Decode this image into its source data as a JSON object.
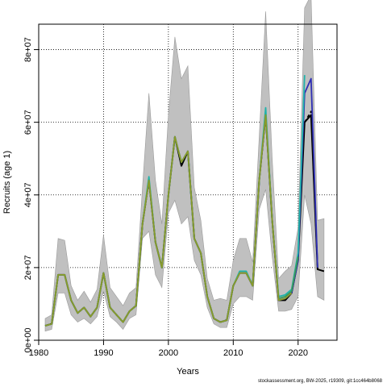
{
  "chart_data": {
    "type": "line",
    "xlabel": "Years",
    "ylabel": "Recruits (age 1)",
    "xlim": [
      1980,
      2026
    ],
    "ylim": [
      0,
      87000000
    ],
    "x_ticks": [
      1980,
      1990,
      2000,
      2010,
      2020
    ],
    "x_tick_labels": [
      "1980",
      "1990",
      "2000",
      "2010",
      "2020"
    ],
    "y_ticks": [
      0,
      20000000,
      40000000,
      60000000,
      80000000
    ],
    "y_tick_labels": [
      "0e+00",
      "2e+07",
      "4e+07",
      "6e+07",
      "8e+07"
    ],
    "grid": true,
    "x": [
      1981,
      1982,
      1983,
      1984,
      1985,
      1986,
      1987,
      1988,
      1989,
      1990,
      1991,
      1992,
      1993,
      1994,
      1995,
      1996,
      1997,
      1998,
      1999,
      2000,
      2001,
      2002,
      2003,
      2004,
      2005,
      2006,
      2007,
      2008,
      2009,
      2010,
      2011,
      2012,
      2013,
      2014,
      2015,
      2016,
      2017,
      2018,
      2019,
      2020,
      2021,
      2022,
      2023,
      2024
    ],
    "ci_upper": [
      6000000,
      7000000,
      28000000,
      27500000,
      15000000,
      11000000,
      13500000,
      10500000,
      14000000,
      29000000,
      14500000,
      12000000,
      9500000,
      13000000,
      14500000,
      42000000,
      68000000,
      44000000,
      32000000,
      62000000,
      83500000,
      72000000,
      75500000,
      42000000,
      33000000,
      17000000,
      11000000,
      11500000,
      11000000,
      22000000,
      28000000,
      28000000,
      21500000,
      56000000,
      90500000,
      50000000,
      17000000,
      19000000,
      20500000,
      31000000,
      91500000,
      95000000,
      33000000,
      33500000
    ],
    "ci_lower": [
      2500000,
      3000000,
      13000000,
      13000000,
      7000000,
      5000000,
      6000000,
      4500000,
      6500000,
      13500000,
      6500000,
      5000000,
      3000000,
      6000000,
      7000000,
      28000000,
      30000000,
      18000000,
      14500000,
      35000000,
      38500000,
      32000000,
      34000000,
      22000000,
      18000000,
      9000000,
      4500000,
      3500000,
      3500000,
      10000000,
      12000000,
      12000000,
      11000000,
      36000000,
      41500000,
      23000000,
      8000000,
      8000000,
      8500000,
      12000000,
      40000000,
      32000000,
      12000000,
      11000000
    ],
    "series": [
      {
        "color": "#000000",
        "style": "solid",
        "values": [
          4000000,
          4500000,
          18000000,
          18000000,
          11000000,
          7500000,
          9000000,
          6500000,
          9000000,
          18500000,
          9000000,
          7000000,
          5000000,
          8000000,
          9500000,
          32000000,
          44000000,
          27000000,
          20000000,
          40000000,
          56000000,
          48000000,
          52000000,
          28000000,
          24000000,
          12000000,
          6000000,
          5000000,
          5500000,
          15000000,
          18500000,
          18500000,
          15000000,
          44000000,
          62000000,
          33000000,
          11000000,
          11000000,
          13000000,
          22000000,
          60000000,
          62000000,
          19500000,
          19000000
        ]
      },
      {
        "color": "#000000",
        "style": "dashed",
        "values": [
          null,
          null,
          null,
          null,
          null,
          null,
          null,
          null,
          null,
          null,
          null,
          null,
          null,
          null,
          null,
          null,
          null,
          null,
          null,
          null,
          null,
          null,
          null,
          null,
          null,
          null,
          null,
          null,
          null,
          null,
          null,
          null,
          null,
          null,
          null,
          null,
          null,
          null,
          null,
          null,
          60000000,
          63000000,
          19500000,
          null
        ]
      },
      {
        "color": "#2f2fb4",
        "style": "solid",
        "values": [
          4000000,
          4500000,
          18000000,
          18000000,
          11000000,
          7500000,
          9000000,
          6500000,
          9000000,
          18500000,
          9000000,
          7000000,
          5000000,
          8000000,
          9500000,
          32000000,
          44000000,
          27000000,
          20000000,
          40000000,
          56000000,
          49000000,
          52000000,
          28000000,
          24000000,
          12000000,
          6000000,
          5000000,
          5500000,
          15000000,
          18500000,
          18500000,
          15000000,
          44000000,
          62000000,
          33000000,
          11000000,
          11500000,
          13000000,
          22000000,
          68000000,
          72000000,
          20000000,
          null
        ]
      },
      {
        "color": "#20b2aa",
        "style": "solid",
        "values": [
          4000000,
          4500000,
          18000000,
          18000000,
          11000000,
          7500000,
          9000000,
          6500000,
          9000000,
          18500000,
          9000000,
          7000000,
          5000000,
          8000000,
          9500000,
          32000000,
          45000000,
          27000000,
          20000000,
          40000000,
          56000000,
          49000000,
          52000000,
          28000000,
          24000000,
          12000000,
          6000000,
          5000000,
          5500000,
          15000000,
          19000000,
          19000000,
          15000000,
          44000000,
          64000000,
          33000000,
          12000000,
          12500000,
          14000000,
          24000000,
          73000000,
          null,
          null,
          null
        ]
      },
      {
        "color": "#3a9a5a",
        "style": "solid",
        "values": [
          4000000,
          4500000,
          18000000,
          18000000,
          11000000,
          7500000,
          9000000,
          6500000,
          9000000,
          18500000,
          9000000,
          7000000,
          5000000,
          8000000,
          9500000,
          32000000,
          44000000,
          27000000,
          20000000,
          40000000,
          56000000,
          49000000,
          52000000,
          28000000,
          24000000,
          12000000,
          6000000,
          5000000,
          5500000,
          15000000,
          18500000,
          18500000,
          15000000,
          44000000,
          62000000,
          33000000,
          11500000,
          12000000,
          13500000,
          23000000,
          null,
          null,
          null,
          null
        ]
      },
      {
        "color": "#8a9a2a",
        "style": "solid",
        "values": [
          4000000,
          4500000,
          18000000,
          18000000,
          11000000,
          7500000,
          9000000,
          6500000,
          9000000,
          18500000,
          9000000,
          7000000,
          5000000,
          8000000,
          9500000,
          32000000,
          44000000,
          27000000,
          20000000,
          40000000,
          56000000,
          49000000,
          52000000,
          28000000,
          24000000,
          12000000,
          6000000,
          5000000,
          5500000,
          15000000,
          18500000,
          18500000,
          15000000,
          44000000,
          62000000,
          33000000,
          11000000,
          11500000,
          13000000,
          null,
          null,
          null,
          null,
          null
        ]
      }
    ]
  },
  "footer": "stockassessment.org, BW-2025, r19309, git:1cc464b8068"
}
